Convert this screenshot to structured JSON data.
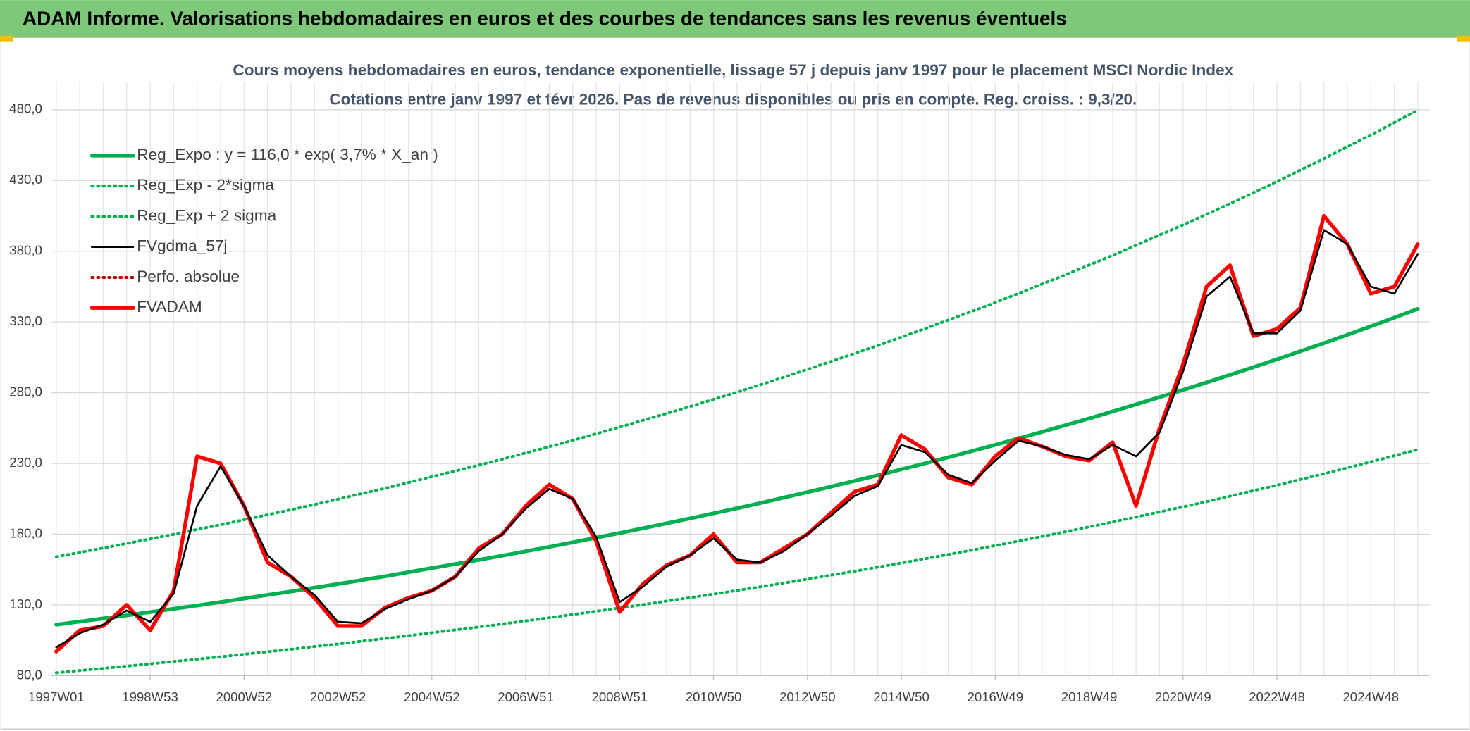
{
  "chart_data": {
    "type": "line",
    "header": "ADAM Informe. Valorisations hebdomadaires en euros et des courbes de tendances sans les revenus éventuels",
    "title": "Cours moyens hebdomadaires en euros, tendance exponentielle, lissage 57 j depuis janv 1997 pour le placement MSCI Nordic Index",
    "subtitle": "Cotations entre janv 1997 et févr 2026. Pas de revenus disponibles ou pris en compte. Reg. croiss. : 9,3/20.",
    "categories": [
      "1997W01",
      null,
      null,
      null,
      "1998W53",
      null,
      null,
      null,
      "2000W52",
      null,
      null,
      null,
      "2002W52",
      null,
      null,
      null,
      "2004W52",
      null,
      null,
      null,
      "2006W51",
      null,
      null,
      null,
      "2008W51",
      null,
      null,
      null,
      "2010W50",
      null,
      null,
      null,
      "2012W50",
      null,
      null,
      null,
      "2014W50",
      null,
      null,
      null,
      "2016W49",
      null,
      null,
      null,
      "2018W49",
      null,
      null,
      null,
      "2020W49",
      null,
      null,
      null,
      "2022W48",
      null,
      null,
      null,
      "2024W48",
      null,
      null
    ],
    "ylim": [
      80,
      480
    ],
    "yticks": [
      {
        "value": 80,
        "label": "80,0"
      },
      {
        "value": 130,
        "label": "130,0"
      },
      {
        "value": 180,
        "label": "180,0"
      },
      {
        "value": 230,
        "label": "230,0"
      },
      {
        "value": 280,
        "label": "280,0"
      },
      {
        "value": 330,
        "label": "330,0"
      },
      {
        "value": 380,
        "label": "380,0"
      },
      {
        "value": 430,
        "label": "430,0"
      },
      {
        "value": 480,
        "label": "480,0"
      }
    ],
    "grid": true,
    "legend": "upper left",
    "series": [
      {
        "name": "Reg_Expo : y = 116,0 * exp( 3,7% *  X_an )",
        "color": "#00b050",
        "line_style": "thick",
        "values": [
          116.0,
          118.2,
          120.4,
          122.6,
          124.9,
          127.2,
          129.6,
          132.0,
          134.5,
          137.0,
          139.5,
          142.1,
          144.8,
          147.5,
          150.2,
          153.1,
          156.0,
          158.9,
          161.8,
          164.8,
          167.9,
          171.0,
          174.2,
          177.5,
          180.8,
          184.2,
          187.6,
          191.1,
          194.7,
          198.3,
          202.0,
          205.8,
          209.7,
          213.6,
          217.6,
          221.6,
          225.8,
          230.0,
          234.3,
          238.7,
          243.1,
          247.7,
          252.3,
          257.0,
          261.8,
          266.7,
          271.7,
          276.8,
          281.9,
          287.2,
          292.6,
          298.0,
          303.6,
          309.3,
          315.0,
          320.9,
          326.9,
          333.0,
          339.2
        ]
      },
      {
        "name": "Reg_Exp - 2*sigma",
        "color": "#00b050",
        "line_style": "dotted",
        "values": [
          82.0,
          83.6,
          85.1,
          86.7,
          88.3,
          90.0,
          91.6,
          93.3,
          95.1,
          96.9,
          98.6,
          100.5,
          102.3,
          104.3,
          106.2,
          108.2,
          110.3,
          112.3,
          114.4,
          116.5,
          118.7,
          120.9,
          123.2,
          125.5,
          127.8,
          130.2,
          132.7,
          135.1,
          137.6,
          140.2,
          142.8,
          145.5,
          148.2,
          151.0,
          153.8,
          156.7,
          159.6,
          162.6,
          165.6,
          168.7,
          171.9,
          175.1,
          178.4,
          181.7,
          185.1,
          188.6,
          192.1,
          195.7,
          199.3,
          203.0,
          206.8,
          210.7,
          214.6,
          218.7,
          222.7,
          226.9,
          231.1,
          235.4,
          239.8
        ]
      },
      {
        "name": "Reg_Exp + 2 sigma",
        "color": "#00b050",
        "line_style": "dotted",
        "values": [
          164.0,
          167.1,
          170.2,
          173.4,
          176.6,
          179.9,
          183.3,
          186.6,
          190.2,
          193.7,
          197.3,
          200.9,
          204.7,
          208.6,
          212.4,
          216.5,
          220.6,
          224.7,
          228.8,
          233.0,
          237.4,
          241.8,
          246.3,
          251.0,
          255.7,
          260.5,
          265.3,
          270.2,
          275.3,
          280.4,
          285.6,
          291.0,
          296.5,
          302.0,
          307.7,
          313.3,
          319.3,
          325.2,
          331.3,
          337.5,
          343.7,
          350.2,
          356.8,
          363.4,
          370.2,
          377.1,
          384.2,
          391.4,
          398.6,
          406.1,
          413.7,
          421.4,
          429.3,
          437.4,
          445.4,
          453.8,
          462.2,
          470.9,
          479.6
        ]
      },
      {
        "name": "FVgdma_57j",
        "color": "#000000",
        "line_style": "thin",
        "values": [
          100,
          110,
          116,
          126,
          118,
          138,
          200,
          228,
          200,
          165,
          150,
          137,
          118,
          117,
          127,
          134,
          140,
          150,
          168,
          180,
          198,
          212,
          205,
          178,
          132,
          143,
          157,
          165,
          177,
          162,
          160,
          168,
          180,
          193,
          207,
          214,
          243,
          238,
          222,
          216,
          232,
          246,
          242,
          236,
          233,
          243,
          235,
          252,
          295,
          348,
          362,
          322,
          322,
          338,
          395,
          385,
          355,
          350,
          378
        ]
      },
      {
        "name": "Perfo. absolue",
        "color": "#c00000",
        "line_style": "dotted",
        "values": [
          97,
          112,
          115,
          130,
          112,
          140,
          235,
          230,
          200,
          160,
          150,
          135,
          115,
          115,
          128,
          135,
          140,
          150,
          170,
          180,
          200,
          215,
          205,
          175,
          125,
          145,
          158,
          165,
          180,
          160,
          160,
          170,
          180,
          195,
          210,
          215,
          250,
          240,
          220,
          215,
          235,
          248,
          242,
          235,
          232,
          245,
          200,
          255,
          300,
          355,
          370,
          320,
          325,
          340,
          405,
          385,
          350,
          355,
          385
        ]
      },
      {
        "name": "FVADAM",
        "color": "#ff0000",
        "line_style": "thick",
        "values": [
          97,
          112,
          115,
          130,
          112,
          140,
          235,
          230,
          200,
          160,
          150,
          135,
          115,
          115,
          128,
          135,
          140,
          150,
          170,
          180,
          200,
          215,
          205,
          175,
          125,
          145,
          158,
          165,
          180,
          160,
          160,
          170,
          180,
          195,
          210,
          215,
          250,
          240,
          220,
          215,
          235,
          248,
          242,
          235,
          232,
          245,
          200,
          255,
          300,
          355,
          370,
          320,
          325,
          340,
          405,
          385,
          350,
          355,
          385
        ]
      }
    ]
  }
}
